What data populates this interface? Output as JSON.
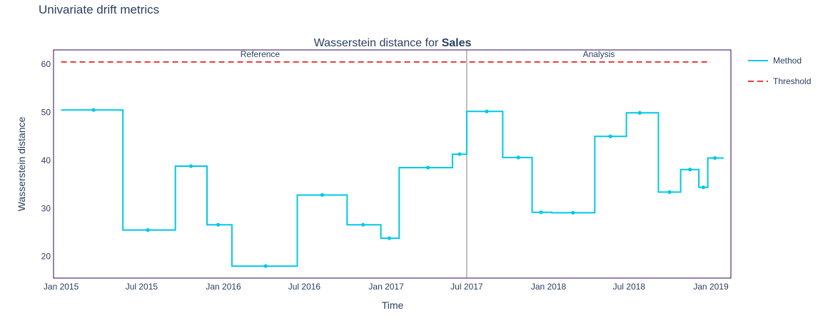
{
  "figure_title": "Univariate drift metrics",
  "chart_data": {
    "type": "line",
    "title_prefix": "Wasserstein distance for ",
    "title_bold": "Sales",
    "xlabel": "Time",
    "ylabel": "Wasserstein distance",
    "ylim": [
      15.5,
      63
    ],
    "xlim": [
      "2014-12-15",
      "2019-02-15"
    ],
    "x_ticks": [
      "Jan 2015",
      "Jul 2015",
      "Jan 2016",
      "Jul 2016",
      "Jan 2017",
      "Jul 2017",
      "Jan 2018",
      "Jul 2018",
      "Jan 2019"
    ],
    "x_tick_dates": [
      "2015-01-01",
      "2015-07-01",
      "2016-01-01",
      "2016-07-01",
      "2017-01-01",
      "2017-07-01",
      "2018-01-01",
      "2018-07-01",
      "2019-01-01"
    ],
    "y_ticks": [
      20,
      30,
      40,
      50,
      60
    ],
    "split_date": "2017-07-01",
    "periods": [
      {
        "label": "Reference",
        "start": "2015-01-01",
        "end": "2017-07-01"
      },
      {
        "label": "Analysis",
        "start": "2017-07-01",
        "end": "2019-01-01"
      }
    ],
    "series": [
      {
        "name": "Method",
        "color": "#00c8e5",
        "steps": [
          {
            "start": "2015-01-01",
            "end": "2015-05-20",
            "value": 50.5
          },
          {
            "start": "2015-05-20",
            "end": "2015-09-15",
            "value": 25.5
          },
          {
            "start": "2015-09-15",
            "end": "2015-11-25",
            "value": 38.8
          },
          {
            "start": "2015-11-25",
            "end": "2016-01-20",
            "value": 26.6
          },
          {
            "start": "2016-01-20",
            "end": "2016-06-15",
            "value": 18.0
          },
          {
            "start": "2016-06-15",
            "end": "2016-10-05",
            "value": 32.8
          },
          {
            "start": "2016-10-05",
            "end": "2016-12-20",
            "value": 26.6
          },
          {
            "start": "2016-12-20",
            "end": "2017-01-30",
            "value": 23.8
          },
          {
            "start": "2017-01-30",
            "end": "2017-05-30",
            "value": 38.5
          },
          {
            "start": "2017-05-30",
            "end": "2017-07-01",
            "value": 41.3
          },
          {
            "start": "2017-07-01",
            "end": "2017-09-20",
            "value": 50.2
          },
          {
            "start": "2017-09-20",
            "end": "2017-11-25",
            "value": 40.6
          },
          {
            "start": "2017-11-25",
            "end": "2018-01-08",
            "value": 29.2
          },
          {
            "start": "2018-01-08",
            "end": "2018-04-15",
            "value": 29.1
          },
          {
            "start": "2018-04-15",
            "end": "2018-06-25",
            "value": 45.0
          },
          {
            "start": "2018-06-25",
            "end": "2018-09-05",
            "value": 49.9
          },
          {
            "start": "2018-09-05",
            "end": "2018-10-25",
            "value": 33.4
          },
          {
            "start": "2018-10-25",
            "end": "2018-12-05",
            "value": 38.1
          },
          {
            "start": "2018-12-05",
            "end": "2018-12-25",
            "value": 34.4
          },
          {
            "start": "2018-12-25",
            "end": "2019-01-30",
            "value": 40.5
          }
        ],
        "points": [
          {
            "x": "2015-03-15",
            "y": 50.5
          },
          {
            "x": "2015-07-15",
            "y": 25.5
          },
          {
            "x": "2015-10-20",
            "y": 38.8
          },
          {
            "x": "2015-12-20",
            "y": 26.6
          },
          {
            "x": "2016-04-05",
            "y": 18.0
          },
          {
            "x": "2016-08-10",
            "y": 32.8
          },
          {
            "x": "2016-11-10",
            "y": 26.6
          },
          {
            "x": "2017-01-08",
            "y": 23.8
          },
          {
            "x": "2017-04-05",
            "y": 38.5
          },
          {
            "x": "2017-06-15",
            "y": 41.3
          },
          {
            "x": "2017-08-15",
            "y": 50.2
          },
          {
            "x": "2017-10-25",
            "y": 40.6
          },
          {
            "x": "2017-12-15",
            "y": 29.2
          },
          {
            "x": "2018-02-25",
            "y": 29.1
          },
          {
            "x": "2018-05-20",
            "y": 45.0
          },
          {
            "x": "2018-07-25",
            "y": 49.9
          },
          {
            "x": "2018-09-30",
            "y": 33.4
          },
          {
            "x": "2018-11-15",
            "y": 38.1
          },
          {
            "x": "2018-12-15",
            "y": 34.4
          },
          {
            "x": "2019-01-10",
            "y": 40.5
          }
        ]
      },
      {
        "name": "Threshold",
        "color": "#e53935",
        "dashed": true,
        "value": 60.5,
        "start": "2015-01-01",
        "end": "2019-01-01"
      }
    ],
    "legend": [
      "Method",
      "Threshold"
    ],
    "legend_position": "right",
    "grid": false
  }
}
